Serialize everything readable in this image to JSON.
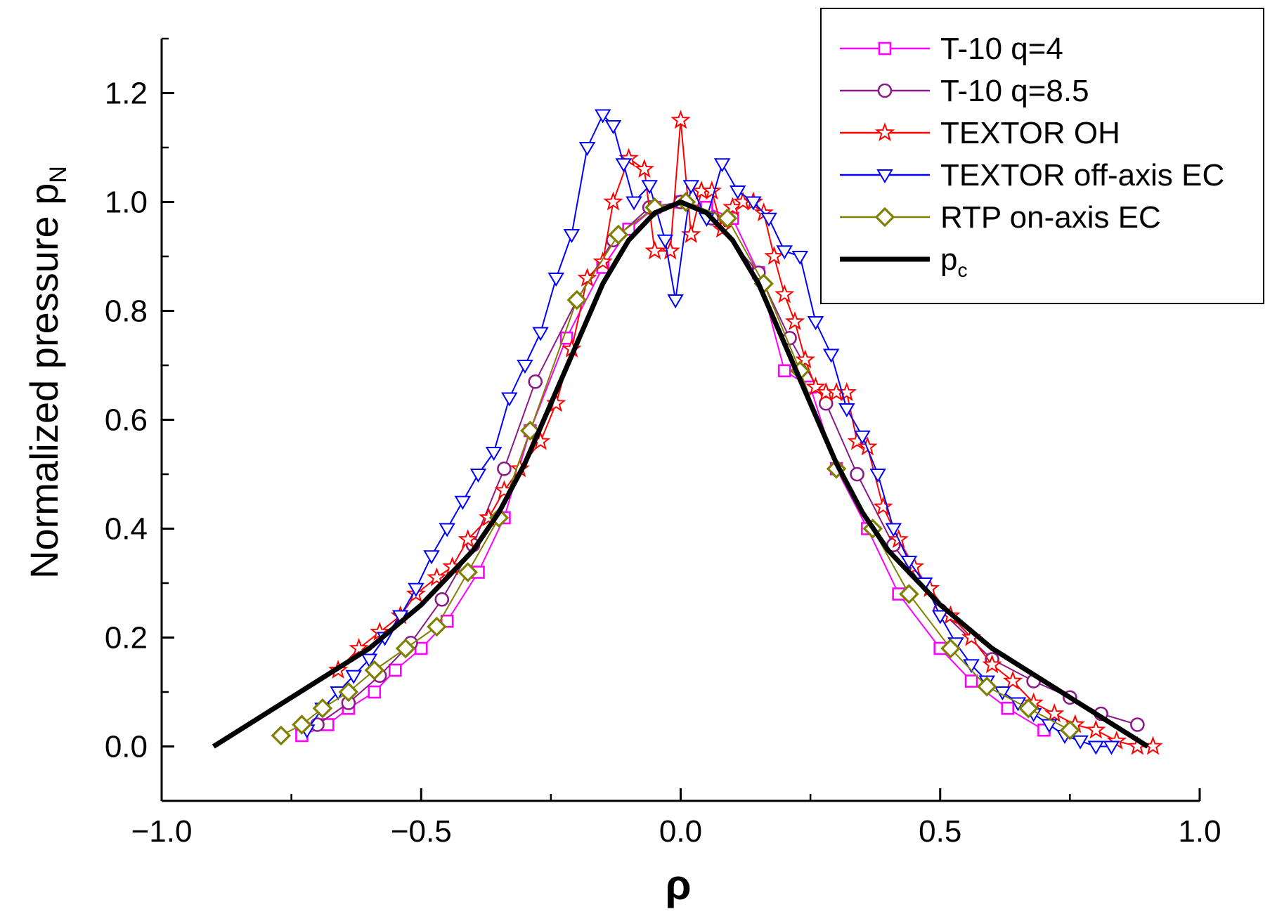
{
  "chart_data": {
    "type": "line",
    "title": "",
    "xlabel": "ρ",
    "ylabel": "Normalized pressure p",
    "ylabel_sub": "N",
    "xlim": [
      -1.0,
      1.0
    ],
    "ylim": [
      -0.1,
      1.3
    ],
    "x_ticks": [
      -1.0,
      -0.5,
      0.0,
      0.5,
      1.0
    ],
    "x_tick_labels": [
      "−1.0",
      "−0.5",
      "0.0",
      "0.5",
      "1.0"
    ],
    "y_ticks": [
      0.0,
      0.2,
      0.4,
      0.6,
      0.8,
      1.0,
      1.2
    ],
    "y_tick_labels": [
      "0.0",
      "0.2",
      "0.4",
      "0.6",
      "0.8",
      "1.0",
      "1.2"
    ],
    "grid": false,
    "legend_position": "top-right",
    "series": [
      {
        "name": "T-10 q=4",
        "marker": "square",
        "color": "#ff00ff",
        "x": [
          -0.73,
          -0.68,
          -0.64,
          -0.59,
          -0.55,
          -0.5,
          -0.45,
          -0.39,
          -0.34,
          -0.29,
          -0.22,
          -0.15,
          -0.1,
          -0.05,
          0.0,
          0.05,
          0.1,
          0.15,
          0.2,
          0.25,
          0.3,
          0.36,
          0.42,
          0.5,
          0.56,
          0.63,
          0.7
        ],
        "y": [
          0.02,
          0.04,
          0.07,
          0.1,
          0.14,
          0.18,
          0.23,
          0.32,
          0.42,
          0.58,
          0.75,
          0.88,
          0.95,
          0.99,
          1.0,
          0.99,
          0.97,
          0.87,
          0.69,
          0.66,
          0.51,
          0.4,
          0.28,
          0.18,
          0.12,
          0.07,
          0.03
        ]
      },
      {
        "name": "T-10 q=8.5",
        "marker": "circle",
        "color": "#8b1a89",
        "x": [
          -0.7,
          -0.64,
          -0.58,
          -0.52,
          -0.46,
          -0.4,
          -0.34,
          -0.28,
          -0.2,
          -0.13,
          -0.06,
          0.0,
          0.06,
          0.15,
          0.21,
          0.28,
          0.34,
          0.41,
          0.5,
          0.6,
          0.68,
          0.75,
          0.81,
          0.88
        ],
        "y": [
          0.04,
          0.08,
          0.13,
          0.19,
          0.27,
          0.37,
          0.51,
          0.67,
          0.82,
          0.93,
          0.99,
          1.0,
          0.97,
          0.87,
          0.75,
          0.63,
          0.5,
          0.37,
          0.25,
          0.16,
          0.12,
          0.09,
          0.06,
          0.04
        ]
      },
      {
        "name": "TEXTOR OH",
        "marker": "star",
        "color": "#ff0000",
        "x": [
          -0.66,
          -0.62,
          -0.58,
          -0.54,
          -0.51,
          -0.47,
          -0.44,
          -0.41,
          -0.37,
          -0.34,
          -0.31,
          -0.27,
          -0.24,
          -0.21,
          -0.18,
          -0.15,
          -0.13,
          -0.1,
          -0.07,
          -0.05,
          -0.02,
          0.0,
          0.02,
          0.04,
          0.06,
          0.08,
          0.1,
          0.12,
          0.14,
          0.16,
          0.18,
          0.2,
          0.22,
          0.24,
          0.26,
          0.28,
          0.3,
          0.32,
          0.34,
          0.36,
          0.39,
          0.42,
          0.45,
          0.48,
          0.52,
          0.56,
          0.6,
          0.64,
          0.68,
          0.72,
          0.76,
          0.8,
          0.84,
          0.88,
          0.91
        ],
        "y": [
          0.14,
          0.18,
          0.21,
          0.24,
          0.28,
          0.31,
          0.33,
          0.38,
          0.42,
          0.47,
          0.51,
          0.56,
          0.63,
          0.73,
          0.86,
          0.89,
          1.0,
          1.08,
          1.06,
          0.91,
          0.91,
          1.15,
          0.94,
          1.02,
          1.02,
          0.95,
          0.99,
          1.0,
          1.0,
          0.98,
          0.9,
          0.83,
          0.78,
          0.71,
          0.66,
          0.65,
          0.65,
          0.65,
          0.56,
          0.55,
          0.44,
          0.38,
          0.33,
          0.29,
          0.24,
          0.2,
          0.15,
          0.12,
          0.08,
          0.06,
          0.04,
          0.03,
          0.01,
          0.0,
          0.0
        ]
      },
      {
        "name": "TEXTOR off-axis EC",
        "marker": "triangle-down",
        "color": "#0000ff",
        "x": [
          -0.72,
          -0.69,
          -0.66,
          -0.63,
          -0.6,
          -0.57,
          -0.54,
          -0.51,
          -0.48,
          -0.45,
          -0.42,
          -0.39,
          -0.36,
          -0.33,
          -0.3,
          -0.27,
          -0.24,
          -0.21,
          -0.18,
          -0.15,
          -0.13,
          -0.11,
          -0.09,
          -0.06,
          -0.03,
          -0.01,
          0.02,
          0.05,
          0.08,
          0.11,
          0.14,
          0.17,
          0.2,
          0.23,
          0.26,
          0.29,
          0.32,
          0.35,
          0.38,
          0.41,
          0.44,
          0.47,
          0.5,
          0.53,
          0.56,
          0.59,
          0.62,
          0.65,
          0.68,
          0.71,
          0.74,
          0.77,
          0.8,
          0.83
        ],
        "y": [
          0.03,
          0.07,
          0.1,
          0.13,
          0.16,
          0.2,
          0.24,
          0.29,
          0.35,
          0.4,
          0.45,
          0.5,
          0.54,
          0.64,
          0.7,
          0.76,
          0.86,
          0.94,
          1.1,
          1.16,
          1.14,
          1.07,
          1.0,
          1.03,
          0.93,
          0.82,
          1.03,
          0.97,
          1.07,
          1.02,
          1.0,
          0.97,
          0.91,
          0.9,
          0.78,
          0.72,
          0.62,
          0.57,
          0.5,
          0.4,
          0.34,
          0.3,
          0.24,
          0.19,
          0.15,
          0.12,
          0.1,
          0.08,
          0.06,
          0.04,
          0.02,
          0.01,
          0.0,
          0.0
        ]
      },
      {
        "name": "RTP on-axis EC",
        "marker": "diamond",
        "color": "#808000",
        "x": [
          -0.77,
          -0.73,
          -0.69,
          -0.64,
          -0.59,
          -0.53,
          -0.47,
          -0.41,
          -0.35,
          -0.29,
          -0.2,
          -0.12,
          -0.05,
          0.01,
          0.09,
          0.16,
          0.23,
          0.3,
          0.37,
          0.44,
          0.52,
          0.59,
          0.67,
          0.75
        ],
        "y": [
          0.02,
          0.04,
          0.07,
          0.1,
          0.14,
          0.18,
          0.22,
          0.32,
          0.42,
          0.58,
          0.82,
          0.94,
          0.99,
          1.0,
          0.97,
          0.85,
          0.69,
          0.51,
          0.4,
          0.28,
          0.18,
          0.11,
          0.07,
          0.03
        ]
      },
      {
        "name": "p",
        "name_sub": "c",
        "marker": "none",
        "color": "#000000",
        "line_width": 7,
        "x": [
          -0.9,
          -0.8,
          -0.7,
          -0.6,
          -0.5,
          -0.4,
          -0.35,
          -0.3,
          -0.25,
          -0.2,
          -0.15,
          -0.1,
          -0.05,
          0.0,
          0.05,
          0.1,
          0.15,
          0.2,
          0.25,
          0.3,
          0.35,
          0.4,
          0.5,
          0.6,
          0.7,
          0.8,
          0.9
        ],
        "y": [
          0.0,
          0.06,
          0.12,
          0.18,
          0.26,
          0.36,
          0.43,
          0.52,
          0.63,
          0.74,
          0.85,
          0.93,
          0.98,
          1.0,
          0.98,
          0.93,
          0.85,
          0.74,
          0.63,
          0.52,
          0.43,
          0.36,
          0.26,
          0.18,
          0.12,
          0.06,
          0.0
        ]
      }
    ]
  }
}
